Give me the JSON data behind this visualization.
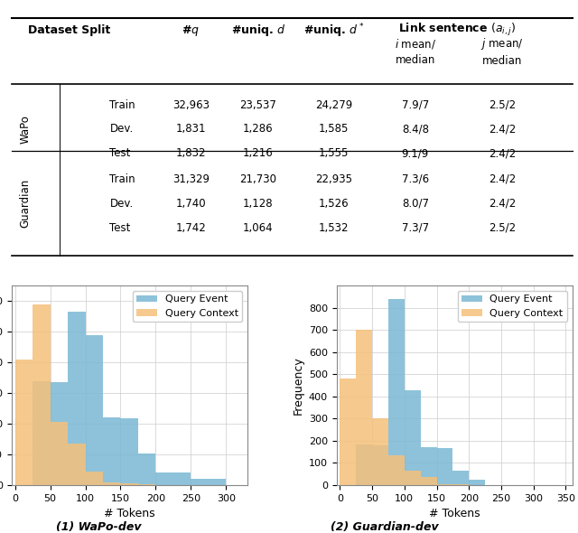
{
  "table_rows": [
    [
      "WaPo",
      "Train",
      "32,963",
      "23,537",
      "24,279",
      "7.9/7",
      "2.5/2"
    ],
    [
      "WaPo",
      "Dev.",
      "1,831",
      "1,286",
      "1,585",
      "8.4/8",
      "2.4/2"
    ],
    [
      "WaPo",
      "Test",
      "1,832",
      "1,216",
      "1,555",
      "9.1/9",
      "2.4/2"
    ],
    [
      "Guardian",
      "Train",
      "31,329",
      "21,730",
      "22,935",
      "7.3/6",
      "2.4/2"
    ],
    [
      "Guardian",
      "Dev.",
      "1,740",
      "1,128",
      "1,526",
      "8.0/7",
      "2.4/2"
    ],
    [
      "Guardian",
      "Test",
      "1,742",
      "1,064",
      "1,532",
      "7.3/7",
      "2.5/2"
    ]
  ],
  "wapo_event_counts": [
    0,
    338,
    335,
    566,
    490,
    220,
    219,
    102,
    40,
    40,
    20,
    20,
    0,
    0
  ],
  "wapo_context_counts": [
    410,
    590,
    205,
    135,
    45,
    10,
    5,
    2,
    1,
    0,
    0,
    0,
    0,
    0
  ],
  "guardian_event_counts": [
    0,
    185,
    180,
    840,
    430,
    170,
    165,
    65,
    25,
    0,
    0,
    0,
    0,
    0
  ],
  "guardian_context_counts": [
    480,
    700,
    300,
    135,
    65,
    35,
    5,
    2,
    0,
    0,
    0,
    0,
    0,
    0
  ],
  "color_event": "#7ab8d4",
  "color_context": "#f5c07a",
  "caption1": "(1) WaPo-dev",
  "caption2": "(2) Guardian-dev",
  "xlabel": "# Tokens",
  "ylabel": "Frequency"
}
